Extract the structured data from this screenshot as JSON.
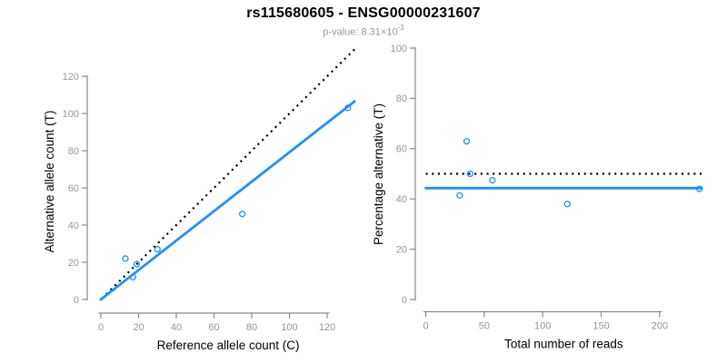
{
  "header": {
    "title": "rs115680605 - ENSG00000231607",
    "p_value_prefix": "p-value: 8.31×10",
    "p_value_exponent": "-3"
  },
  "colors": {
    "point_blue": "#1E90FF",
    "fit_line_blue": "#1E90FF",
    "reference_line_black": "#000000",
    "axis_gray": "#8a8a8a",
    "tick_label_gray": "#979797",
    "axis_title_black": "#000000",
    "subtitle_gray": "#9a9a9a"
  },
  "chart_data": [
    {
      "type": "scatter",
      "position": "left",
      "xlabel": "Reference allele count (C)",
      "ylabel": "Alternative allele count (T)",
      "xlim": [
        0,
        135
      ],
      "ylim": [
        0,
        135
      ],
      "x_ticks": [
        0,
        20,
        40,
        60,
        80,
        100,
        120
      ],
      "y_ticks": [
        0,
        20,
        40,
        60,
        80,
        100,
        120
      ],
      "grid": false,
      "points": [
        [
          13,
          22
        ],
        [
          19,
          19
        ],
        [
          17,
          12
        ],
        [
          30,
          27
        ],
        [
          75,
          46
        ],
        [
          131,
          103
        ]
      ],
      "lines": [
        {
          "name": "identity-line",
          "style": "dotted",
          "color": "#000000",
          "x": [
            0.5,
            135
          ],
          "y": [
            0.5,
            135
          ]
        },
        {
          "name": "fit-line",
          "style": "solid",
          "color": "#1E90FF",
          "x": [
            0,
            134.5
          ],
          "y": [
            0,
            106.5
          ]
        }
      ]
    },
    {
      "type": "scatter",
      "position": "right",
      "xlabel": "Total number of reads",
      "ylabel": "Percentage alternative (T)",
      "xlim": [
        0,
        236
      ],
      "ylim": [
        0,
        100
      ],
      "x_ticks": [
        0,
        50,
        100,
        150,
        200
      ],
      "y_ticks": [
        0,
        20,
        40,
        60,
        80,
        100
      ],
      "grid": false,
      "points": [
        [
          35,
          62.9
        ],
        [
          38,
          50
        ],
        [
          29,
          41.4
        ],
        [
          57,
          47.4
        ],
        [
          121,
          38
        ],
        [
          234,
          44
        ]
      ],
      "lines": [
        {
          "name": "expected-50pct-line",
          "style": "dotted",
          "color": "#000000",
          "x": [
            0,
            236
          ],
          "y": [
            50,
            50
          ]
        },
        {
          "name": "mean-percentage-line",
          "style": "solid",
          "color": "#1E90FF",
          "x": [
            0,
            236
          ],
          "y": [
            44.3,
            44.3
          ]
        }
      ]
    }
  ]
}
